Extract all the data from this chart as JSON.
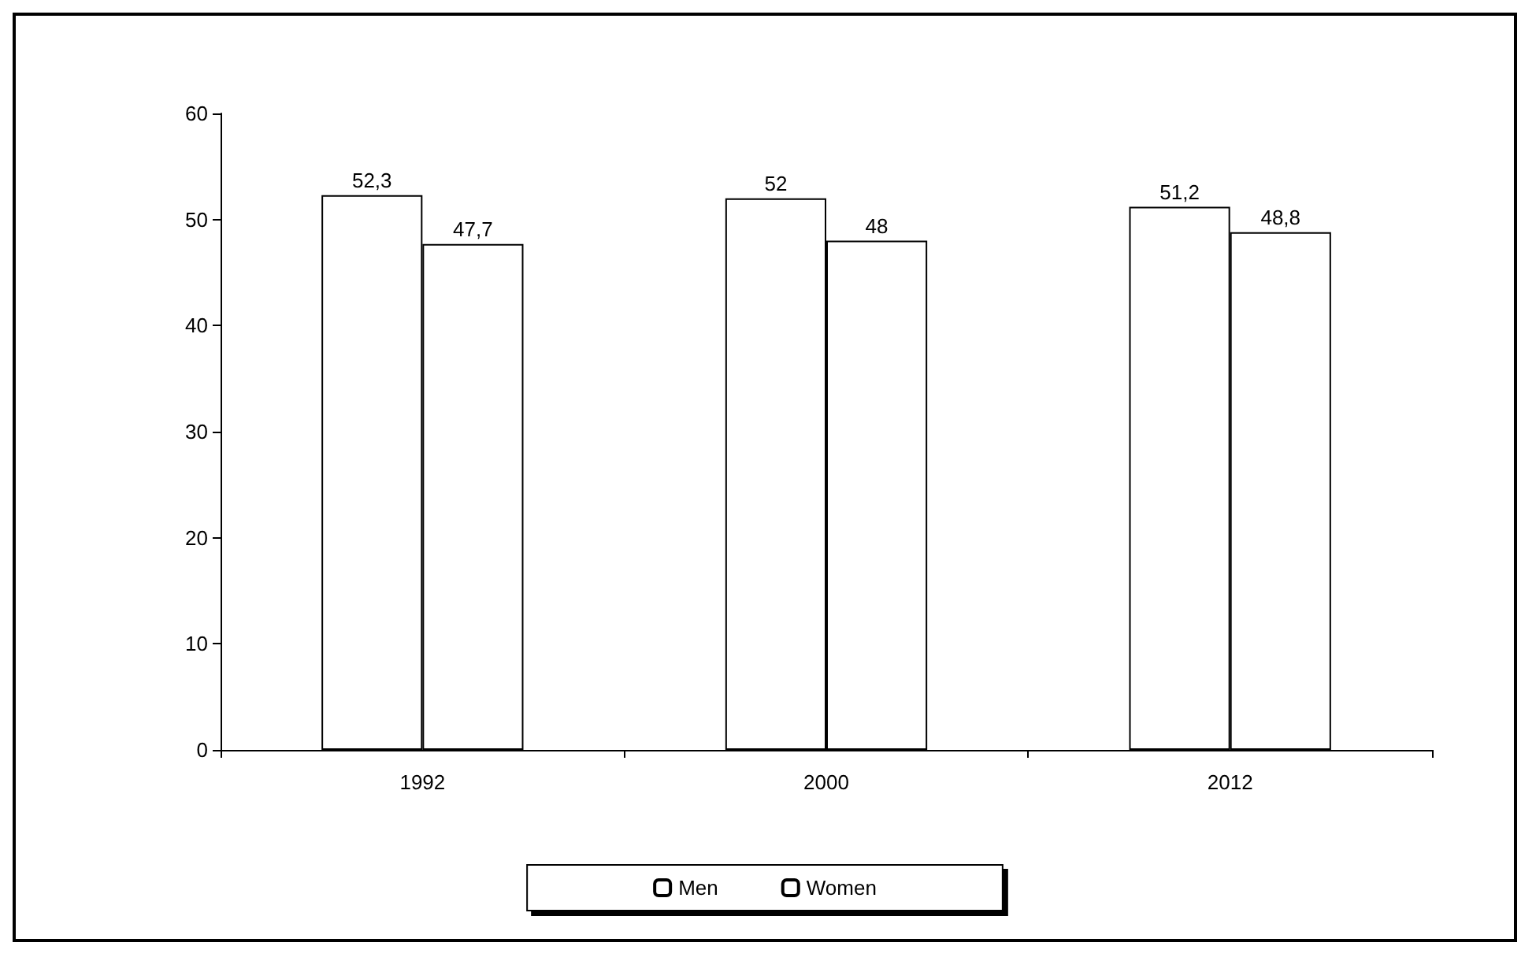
{
  "chart_data": {
    "type": "bar",
    "categories": [
      "1992",
      "2000",
      "2012"
    ],
    "series": [
      {
        "name": "Men",
        "color": "#ffffff",
        "values": [
          52.3,
          52,
          51.2
        ],
        "value_labels": [
          "52,3",
          "52",
          "51,2"
        ]
      },
      {
        "name": "Women",
        "color": "#ffffff",
        "values": [
          47.7,
          48,
          48.8
        ],
        "value_labels": [
          "47,7",
          "48",
          "48,8"
        ]
      }
    ],
    "ylim": [
      0,
      60
    ],
    "yticks": [
      0,
      10,
      20,
      30,
      40,
      50,
      60
    ],
    "grid": false,
    "legend": "bottom"
  }
}
